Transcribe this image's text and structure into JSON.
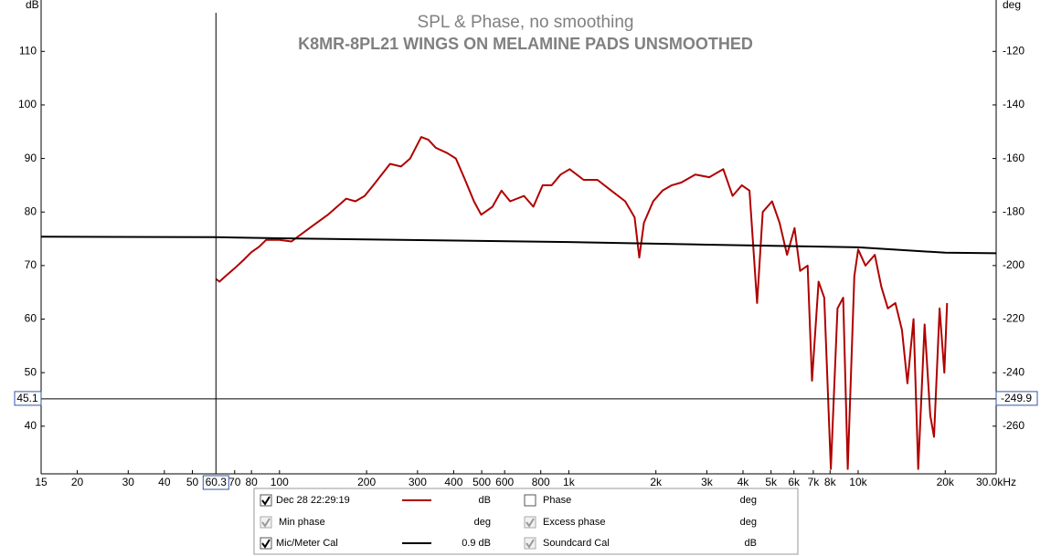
{
  "chart_data": {
    "type": "line",
    "title": "SPL & Phase, no smoothing",
    "subtitle": "K8MR-8PL21 WINGS ON MELAMINE PADS UNSMOOTHED",
    "y_label": "dB",
    "y2_label": "deg",
    "log_x": true,
    "xlim": [
      15,
      30000
    ],
    "ylim": [
      31.1,
      119.6
    ],
    "y2lim": [
      -277.8,
      -100.8
    ],
    "xticks": [
      15,
      20,
      30,
      40,
      50,
      70,
      80,
      100,
      200,
      300,
      400,
      500,
      600,
      800,
      {
        "value": 1000,
        "label": "1k"
      },
      {
        "value": 2000,
        "label": "2k"
      },
      {
        "value": 3000,
        "label": "3k"
      },
      {
        "value": 4000,
        "label": "4k"
      },
      {
        "value": 5000,
        "label": "5k"
      },
      {
        "value": 6000,
        "label": "6k"
      },
      {
        "value": 7000,
        "label": "7k"
      },
      {
        "value": 8000,
        "label": "8k"
      },
      {
        "value": 10000,
        "label": "10k"
      },
      {
        "value": 20000,
        "label": "20k"
      },
      {
        "value": 30000,
        "label": "30.0kHz"
      }
    ],
    "yticks": [
      40,
      50,
      60,
      70,
      80,
      90,
      100,
      110
    ],
    "y2ticks": [
      -260,
      -240,
      -220,
      -200,
      -180,
      -160,
      -140,
      -120
    ],
    "cursor": {
      "x": 60.3,
      "y": 45.1,
      "y2": -249.9
    },
    "series": [
      {
        "name": "Dec 28 22:29:19",
        "color": "#b00000",
        "unit": "dB",
        "checked": true,
        "x": [
          60.3,
          62,
          65,
          70,
          75,
          80,
          85,
          90,
          100,
          110,
          127,
          147,
          170,
          183,
          197,
          211,
          241,
          263,
          283,
          309,
          327,
          347,
          380,
          407,
          438,
          470,
          498,
          545,
          585,
          627,
          700,
          754,
          812,
          873,
          937,
          1007,
          1125,
          1256,
          1403,
          1567,
          1688,
          1752,
          1818,
          1957,
          2108,
          2270,
          2444,
          2734,
          3058,
          3420,
          3682,
          3964,
          4212,
          4476,
          4681,
          5042,
          5352,
          5682,
          6031,
          6303,
          6689,
          6926,
          7300,
          7637,
          8048,
          8486,
          8876,
          9210,
          9705,
          10000,
          10600,
          11420,
          12030,
          12670,
          13450,
          14170,
          14800,
          15540,
          16130,
          16980,
          17760,
          18300,
          19130,
          19860,
          20300
        ],
        "values": [
          67.5,
          67,
          68,
          69.5,
          71,
          72.5,
          73.5,
          74.8,
          74.8,
          74.5,
          77,
          79.5,
          82.5,
          82,
          83,
          85,
          89,
          88.5,
          90,
          94,
          93.5,
          92,
          91,
          90,
          86,
          82,
          79.5,
          81,
          84,
          82,
          83,
          81,
          85,
          85,
          87,
          88,
          86,
          86,
          84,
          82,
          79,
          71.5,
          78,
          82,
          84,
          85,
          85.5,
          87,
          86.5,
          88,
          83,
          85,
          84,
          63,
          80,
          82,
          78,
          72,
          77,
          69,
          70,
          48.5,
          67,
          64,
          32,
          62,
          64,
          32,
          68,
          73,
          70,
          72,
          66,
          62,
          63,
          58,
          48,
          60,
          32,
          59,
          42,
          38,
          62,
          50,
          63
        ]
      },
      {
        "name": "Mic/Meter Cal",
        "color": "#000000",
        "unit_label": "0.9 dB",
        "checked": true,
        "x": [
          15,
          60,
          100,
          1000,
          3000,
          10000,
          20000,
          30000
        ],
        "values": [
          75.4,
          75.3,
          75.1,
          74.4,
          73.9,
          73.4,
          72.4,
          72.3
        ]
      }
    ],
    "legend_items": [
      {
        "name": "Phase",
        "unit": "deg",
        "checked": false,
        "enabled": true
      },
      {
        "name": "Min phase",
        "unit": "deg",
        "checked": true,
        "enabled": false
      },
      {
        "name": "Excess phase",
        "unit": "deg",
        "checked": true,
        "enabled": false
      },
      {
        "name": "Soundcard Cal",
        "unit": "dB",
        "checked": true,
        "enabled": false
      }
    ]
  }
}
